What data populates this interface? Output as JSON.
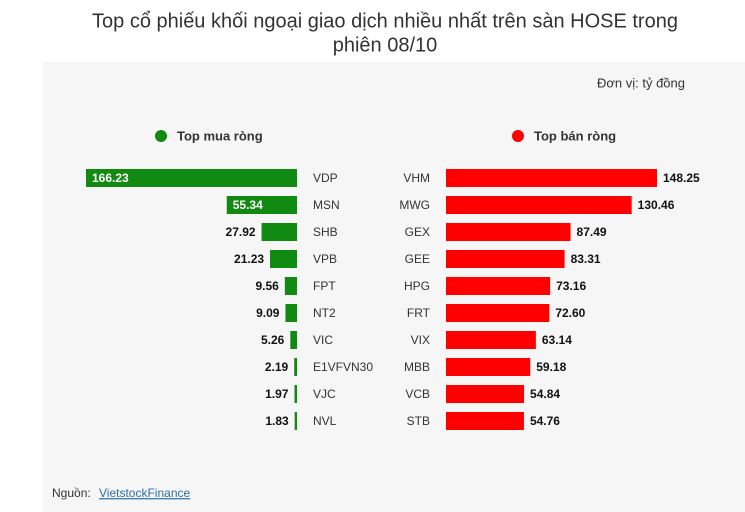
{
  "title_lines": [
    "Top cổ phiếu khối ngoại giao dịch nhiều nhất trên sàn HOSE trong",
    "phiên 08/10"
  ],
  "unit": "Đơn vị: tỷ đồng",
  "source_label": "Nguồn:",
  "source_link": "VietstockFinance",
  "chart_data": [
    {
      "type": "bar",
      "name": "Top mua ròng",
      "color": "#108a10",
      "categories": [
        "VDP",
        "MSN",
        "SHB",
        "VPB",
        "FPT",
        "NT2",
        "VIC",
        "E1VFVN30",
        "VJC",
        "NVL"
      ],
      "values": [
        166.23,
        55.34,
        27.92,
        21.23,
        9.56,
        9.09,
        5.26,
        2.19,
        1.97,
        1.83
      ],
      "value_labels": [
        "166.23",
        "55.34",
        "27.92",
        "21.23",
        "9.56",
        "9.09",
        "5.26",
        "2.19",
        "1.97",
        "1.83"
      ]
    },
    {
      "type": "bar",
      "name": "Top bán ròng",
      "color": "#ff0000",
      "categories": [
        "VHM",
        "MWG",
        "GEX",
        "GEE",
        "HPG",
        "FRT",
        "VIX",
        "MBB",
        "VCB",
        "STB"
      ],
      "values": [
        148.25,
        130.46,
        87.49,
        83.31,
        73.16,
        72.6,
        63.14,
        59.18,
        54.84,
        54.76
      ],
      "value_labels": [
        "148.25",
        "130.46",
        "87.49",
        "83.31",
        "73.16",
        "72.60",
        "63.14",
        "59.18",
        "54.84",
        "54.76"
      ]
    }
  ]
}
